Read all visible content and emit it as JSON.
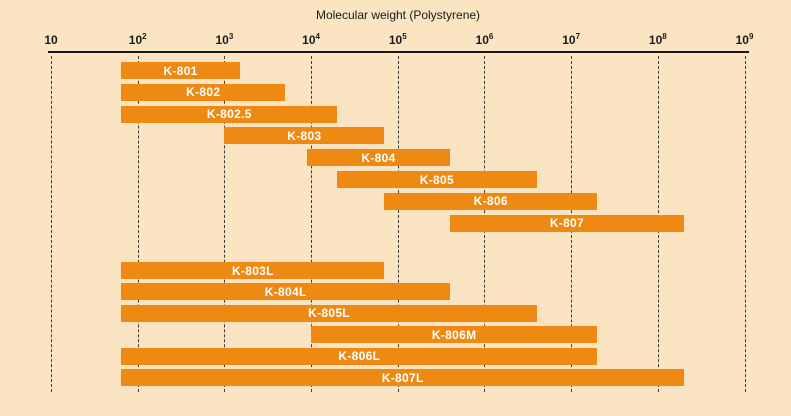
{
  "chart_data": {
    "type": "bar",
    "variant": "horizontal-log-range",
    "title": "Molecular weight (Polystyrene)",
    "x_scale": "log10",
    "x_min": 10,
    "x_max": 1000000000,
    "grid": "dashed-vertical",
    "legend": "none",
    "x_ticks": [
      {
        "label": "10",
        "exp": ""
      },
      {
        "label": "10",
        "exp": "2"
      },
      {
        "label": "10",
        "exp": "3"
      },
      {
        "label": "10",
        "exp": "4"
      },
      {
        "label": "10",
        "exp": "5"
      },
      {
        "label": "10",
        "exp": "6"
      },
      {
        "label": "10",
        "exp": "7"
      },
      {
        "label": "10",
        "exp": "8"
      },
      {
        "label": "10",
        "exp": "9"
      }
    ],
    "series": [
      {
        "name": "K-801",
        "group": 1,
        "mw_min": 65,
        "mw_max": 1500
      },
      {
        "name": "K-802",
        "group": 1,
        "mw_min": 65,
        "mw_max": 5000
      },
      {
        "name": "K-802.5",
        "group": 1,
        "mw_min": 65,
        "mw_max": 20000
      },
      {
        "name": "K-803",
        "group": 1,
        "mw_min": 1000,
        "mw_max": 70000
      },
      {
        "name": "K-804",
        "group": 1,
        "mw_min": 9000,
        "mw_max": 400000
      },
      {
        "name": "K-805",
        "group": 1,
        "mw_min": 20000,
        "mw_max": 4000000
      },
      {
        "name": "K-806",
        "group": 1,
        "mw_min": 70000,
        "mw_max": 20000000
      },
      {
        "name": "K-807",
        "group": 1,
        "mw_min": 400000,
        "mw_max": 200000000
      },
      {
        "name": "K-803L",
        "group": 2,
        "mw_min": 65,
        "mw_max": 70000
      },
      {
        "name": "K-804L",
        "group": 2,
        "mw_min": 65,
        "mw_max": 400000
      },
      {
        "name": "K-805L",
        "group": 2,
        "mw_min": 65,
        "mw_max": 4000000
      },
      {
        "name": "K-806M",
        "group": 2,
        "mw_min": 10000,
        "mw_max": 20000000
      },
      {
        "name": "K-806L",
        "group": 2,
        "mw_min": 65,
        "mw_max": 20000000
      },
      {
        "name": "K-807L",
        "group": 2,
        "mw_min": 65,
        "mw_max": 200000000
      }
    ],
    "colors": {
      "background": "#fbe4c2",
      "bar": "#ee8a14",
      "bar_label": "#ffffff",
      "axis": "#1a1a1a",
      "gridline": "#3a3a3a"
    }
  }
}
